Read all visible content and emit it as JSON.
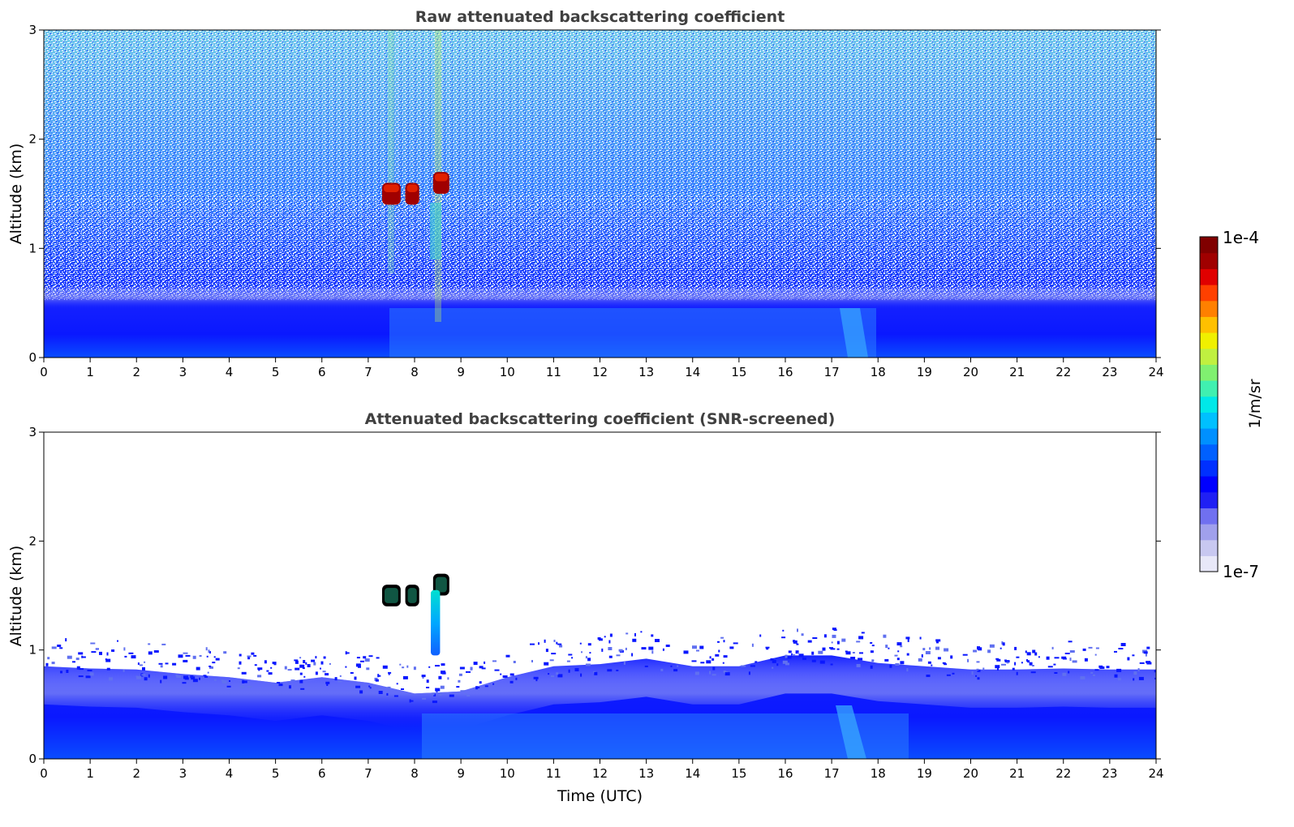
{
  "chart_data": [
    {
      "type": "heatmap",
      "title": "Raw attenuated backscattering coefficient",
      "xlabel": "",
      "ylabel": "Altitude (km)",
      "xlim": [
        0,
        24
      ],
      "ylim": [
        0,
        3
      ],
      "xticks": [
        "0",
        "1",
        "2",
        "3",
        "4",
        "5",
        "6",
        "7",
        "8",
        "9",
        "10",
        "11",
        "12",
        "13",
        "14",
        "15",
        "16",
        "17",
        "18",
        "19",
        "20",
        "21",
        "22",
        "23",
        "24"
      ],
      "yticks": [
        "0",
        "1",
        "2",
        "3"
      ],
      "features": [
        {
          "kind": "boundary_layer",
          "time_range_h": [
            0,
            24
          ],
          "altitude_top_km": 0.5
        },
        {
          "kind": "cloud",
          "time_range_h": [
            7.3,
            7.7
          ],
          "altitude_km": [
            1.4,
            1.6
          ]
        },
        {
          "kind": "cloud",
          "time_range_h": [
            7.8,
            8.1
          ],
          "altitude_km": [
            1.4,
            1.6
          ]
        },
        {
          "kind": "cloud",
          "time_range_h": [
            8.4,
            8.75
          ],
          "altitude_km": [
            1.5,
            1.7
          ]
        }
      ]
    },
    {
      "type": "heatmap",
      "title": "Attenuated backscattering coefficient (SNR-screened)",
      "xlabel": "Time (UTC)",
      "ylabel": "Altitude (km)",
      "xlim": [
        0,
        24
      ],
      "ylim": [
        0,
        3
      ],
      "xticks": [
        "0",
        "1",
        "2",
        "3",
        "4",
        "5",
        "6",
        "7",
        "8",
        "9",
        "10",
        "11",
        "12",
        "13",
        "14",
        "15",
        "16",
        "17",
        "18",
        "19",
        "20",
        "21",
        "22",
        "23",
        "24"
      ],
      "yticks": [
        "0",
        "1",
        "2",
        "3"
      ],
      "layer_top_km": [
        [
          0,
          0.85
        ],
        [
          1,
          0.83
        ],
        [
          2,
          0.82
        ],
        [
          3,
          0.78
        ],
        [
          4,
          0.75
        ],
        [
          5,
          0.7
        ],
        [
          6,
          0.75
        ],
        [
          7,
          0.7
        ],
        [
          8,
          0.6
        ],
        [
          9,
          0.62
        ],
        [
          10,
          0.75
        ],
        [
          11,
          0.85
        ],
        [
          12,
          0.87
        ],
        [
          13,
          0.92
        ],
        [
          14,
          0.85
        ],
        [
          15,
          0.85
        ],
        [
          16,
          0.95
        ],
        [
          17,
          0.95
        ],
        [
          18,
          0.88
        ],
        [
          19,
          0.85
        ],
        [
          20,
          0.82
        ],
        [
          21,
          0.82
        ],
        [
          22,
          0.83
        ],
        [
          23,
          0.82
        ],
        [
          24,
          0.82
        ]
      ],
      "features": [
        {
          "kind": "cloud",
          "time_range_h": [
            7.3,
            7.7
          ],
          "altitude_km": [
            1.4,
            1.6
          ]
        },
        {
          "kind": "cloud",
          "time_range_h": [
            7.8,
            8.1
          ],
          "altitude_km": [
            1.4,
            1.6
          ]
        },
        {
          "kind": "cloud",
          "time_range_h": [
            8.4,
            8.75
          ],
          "altitude_km": [
            1.5,
            1.7
          ]
        },
        {
          "kind": "precip_column",
          "time_range_h": [
            8.35,
            8.55
          ],
          "altitude_km": [
            0.95,
            1.55
          ]
        }
      ]
    }
  ],
  "colorbar": {
    "label": "1/m/sr",
    "min_label": "1e-7",
    "max_label": "1e-4",
    "colors": [
      "#e8e8f8",
      "#c8c8f0",
      "#a0a0ec",
      "#7070f0",
      "#2020f4",
      "#0000ff",
      "#0030ff",
      "#0060ff",
      "#0090ff",
      "#00c0ff",
      "#00e8e8",
      "#40f0b0",
      "#80f070",
      "#c0f040",
      "#f0f000",
      "#ffc000",
      "#ff8000",
      "#ff4000",
      "#e00000",
      "#a00000",
      "#800000"
    ]
  }
}
